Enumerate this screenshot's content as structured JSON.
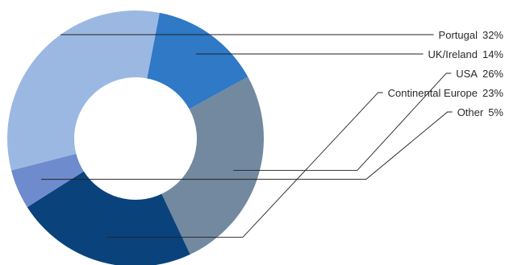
{
  "chart_data": {
    "type": "pie",
    "donut": true,
    "title": "",
    "categories": [
      "Portugal",
      "UK/Ireland",
      "USA",
      "Continental Europe",
      "Other"
    ],
    "values": [
      32,
      14,
      26,
      23,
      5
    ],
    "value_labels": [
      "32%",
      "14%",
      "26%",
      "23%",
      "5%"
    ],
    "colors": [
      "#9bb8e2",
      "#2f79c6",
      "#7289a0",
      "#0a427c",
      "#6e8ccd"
    ],
    "legend_position": "right, with leader lines"
  }
}
